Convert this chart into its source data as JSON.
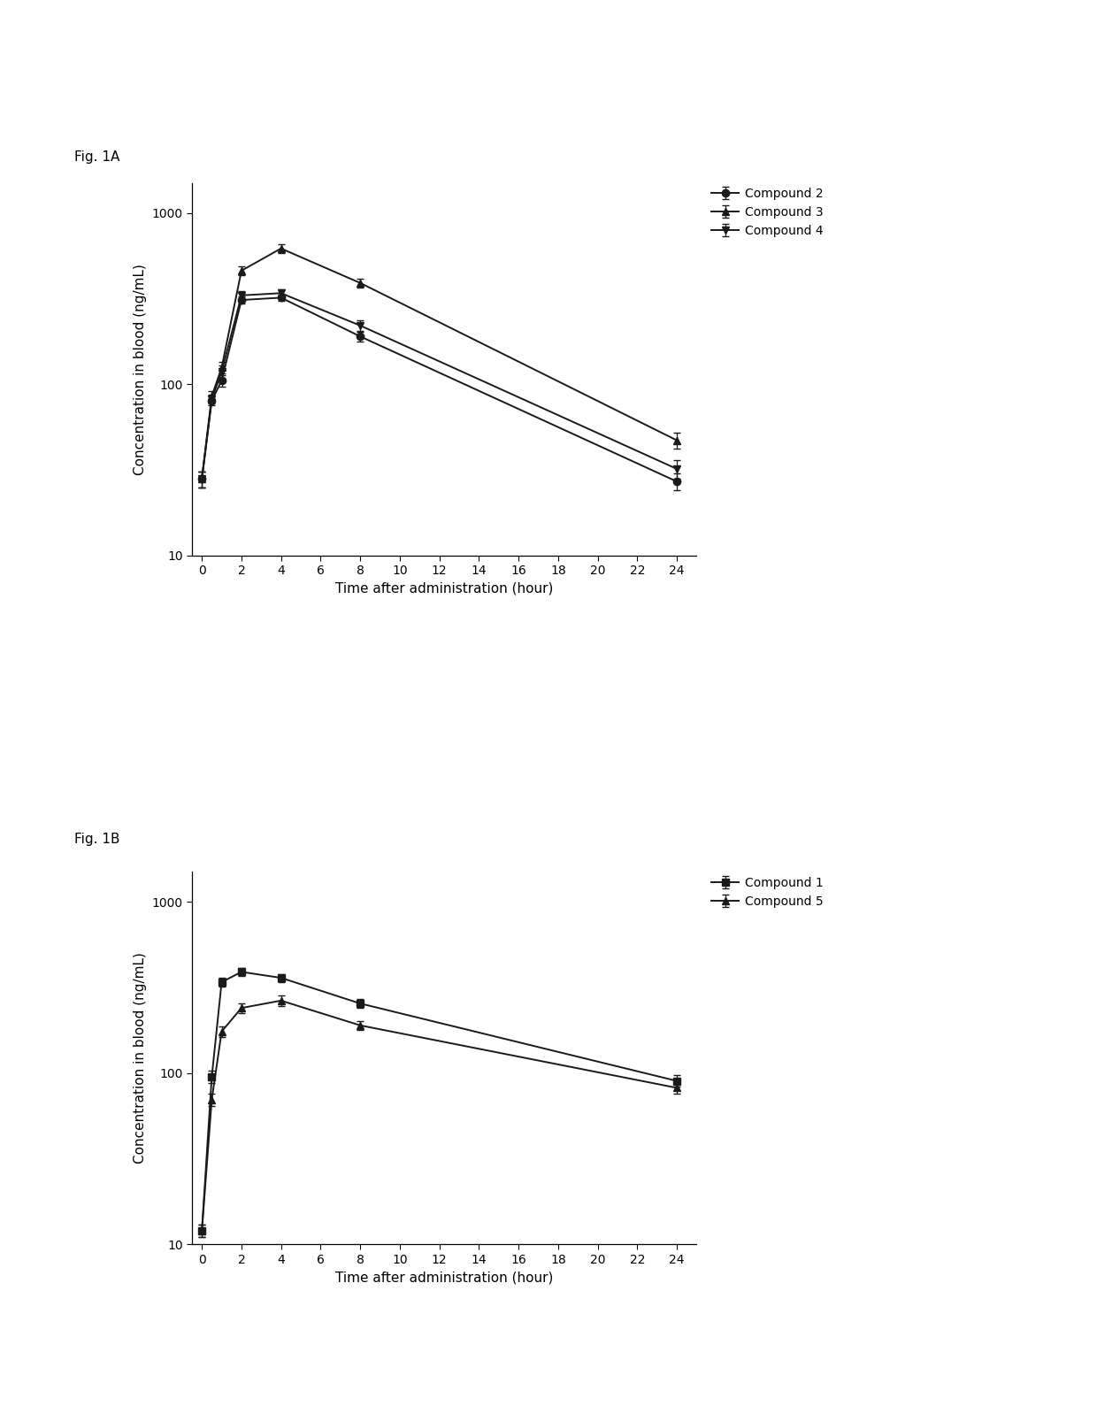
{
  "fig_labels": [
    "Fig. 1A",
    "Fig. 1B"
  ],
  "xlabel": "Time after administration (hour)",
  "ylabel": "Concentration in blood (ng/mL)",
  "background_color": "#ffffff",
  "panel_A": {
    "x": [
      0,
      0.5,
      1,
      2,
      4,
      8,
      24
    ],
    "series": [
      {
        "key": "compound2",
        "y": [
          28,
          80,
          105,
          310,
          320,
          190,
          27
        ],
        "yerr": [
          3,
          5,
          8,
          15,
          15,
          12,
          3
        ],
        "label": "Compound 2",
        "marker": "o"
      },
      {
        "key": "compound3",
        "y": [
          28,
          85,
          125,
          460,
          620,
          390,
          47
        ],
        "yerr": [
          3,
          6,
          10,
          25,
          35,
          25,
          5
        ],
        "label": "Compound 3",
        "marker": "^"
      },
      {
        "key": "compound4",
        "y": [
          28,
          82,
          118,
          330,
          340,
          220,
          32
        ],
        "yerr": [
          3,
          5,
          10,
          18,
          18,
          15,
          4
        ],
        "label": "Compound 4",
        "marker": "v"
      }
    ],
    "ylim": [
      10,
      1500
    ],
    "yticks": [
      10,
      100,
      1000
    ],
    "xticks": [
      0,
      2,
      4,
      6,
      8,
      10,
      12,
      14,
      16,
      18,
      20,
      22,
      24
    ],
    "xlim": [
      -0.5,
      25
    ]
  },
  "panel_B": {
    "x": [
      0,
      0.5,
      1,
      2,
      4,
      8,
      24
    ],
    "series": [
      {
        "key": "compound1",
        "y": [
          12,
          95,
          340,
          390,
          360,
          255,
          90
        ],
        "yerr": [
          1,
          8,
          20,
          20,
          20,
          15,
          7
        ],
        "label": "Compound 1",
        "marker": "s"
      },
      {
        "key": "compound5",
        "y": [
          12,
          70,
          175,
          240,
          265,
          190,
          82
        ],
        "yerr": [
          1,
          6,
          12,
          15,
          18,
          12,
          6
        ],
        "label": "Compound 5",
        "marker": "^"
      }
    ],
    "ylim": [
      10,
      1500
    ],
    "yticks": [
      10,
      100,
      1000
    ],
    "xticks": [
      0,
      2,
      4,
      6,
      8,
      10,
      12,
      14,
      16,
      18,
      20,
      22,
      24
    ],
    "xlim": [
      -0.5,
      25
    ]
  },
  "color": "#1a1a1a",
  "fontsize_label": 11,
  "fontsize_tick": 10,
  "fontsize_legend": 10,
  "fontsize_figlabel": 11,
  "linewidth": 1.4,
  "markersize": 6,
  "capsize": 3
}
